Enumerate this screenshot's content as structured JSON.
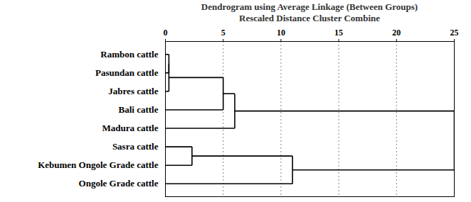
{
  "chart_data": {
    "type": "dendrogram",
    "title": "Dendrogram using Average Linkage (Between Groups)",
    "subtitle": "Rescaled Distance Cluster Combine",
    "orientation": "horizontal",
    "categories": [
      "Rambon cattle",
      "Pasundan cattle",
      "Jabres cattle",
      "Bali cattle",
      "Madura cattle",
      "Sasra cattle",
      "Kebumen Ongole Grade cattle",
      "Ongole Grade cattle"
    ],
    "merges": [
      {
        "join": [
          0,
          1
        ],
        "height": 0.3
      },
      {
        "join": [
          8,
          2
        ],
        "height": 0.3
      },
      {
        "join": [
          9,
          3
        ],
        "height": 5
      },
      {
        "join": [
          10,
          4
        ],
        "height": 6
      },
      {
        "join": [
          5,
          6
        ],
        "height": 2.3
      },
      {
        "join": [
          12,
          7
        ],
        "height": 11
      },
      {
        "join": [
          11,
          13
        ],
        "height": 25
      }
    ],
    "xlim": [
      0,
      25
    ],
    "xticks": [
      0,
      5,
      10,
      15,
      20,
      25
    ],
    "grid": true
  }
}
